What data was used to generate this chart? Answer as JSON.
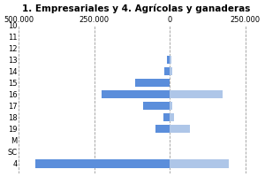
{
  "title": "1. Empresariales y 4. Agrícolas y ganaderas",
  "categories": [
    "10",
    "11",
    "12",
    "13",
    "14",
    "15",
    "16",
    "17",
    "18",
    "19",
    "M",
    "SC",
    "4"
  ],
  "left_values": [
    0,
    0,
    0,
    -8000,
    -18000,
    -115000,
    -225000,
    -88000,
    -22000,
    -48000,
    0,
    0,
    -445000
  ],
  "right_values": [
    0,
    0,
    0,
    5000,
    8000,
    0,
    175000,
    8000,
    14000,
    68000,
    0,
    0,
    195000
  ],
  "left_color": "#5b8edb",
  "right_color": "#aec6e8",
  "xlim_left": -500000,
  "xlim_right": 275000,
  "xticks": [
    -500000,
    -250000,
    0,
    250000
  ],
  "xticklabels": [
    "500.000",
    "250.000",
    "0",
    "250.000"
  ],
  "background_color": "#ffffff",
  "grid_color": "#999999",
  "title_fontsize": 7.5,
  "tick_fontsize": 6.0,
  "bar_height": 0.7
}
